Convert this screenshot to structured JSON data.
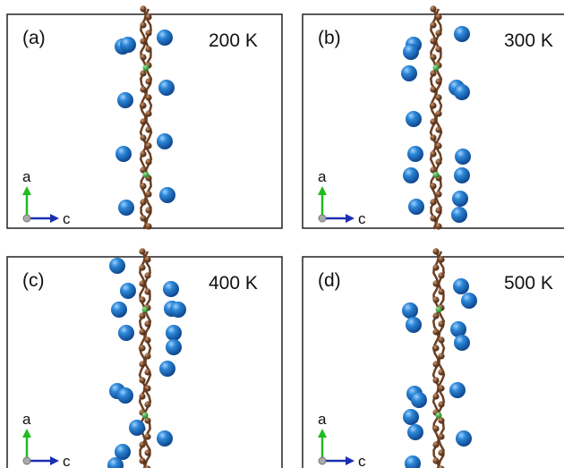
{
  "panels": [
    {
      "label": "(a)",
      "temperature": "200 K",
      "axis_a": "a",
      "axis_c": "c"
    },
    {
      "label": "(b)",
      "temperature": "300 K",
      "axis_a": "a",
      "axis_c": "c"
    },
    {
      "label": "(c)",
      "temperature": "400 K",
      "axis_a": "a",
      "axis_c": "c"
    },
    {
      "label": "(d)",
      "temperature": "500 K",
      "axis_a": "a",
      "axis_c": "c"
    }
  ]
}
